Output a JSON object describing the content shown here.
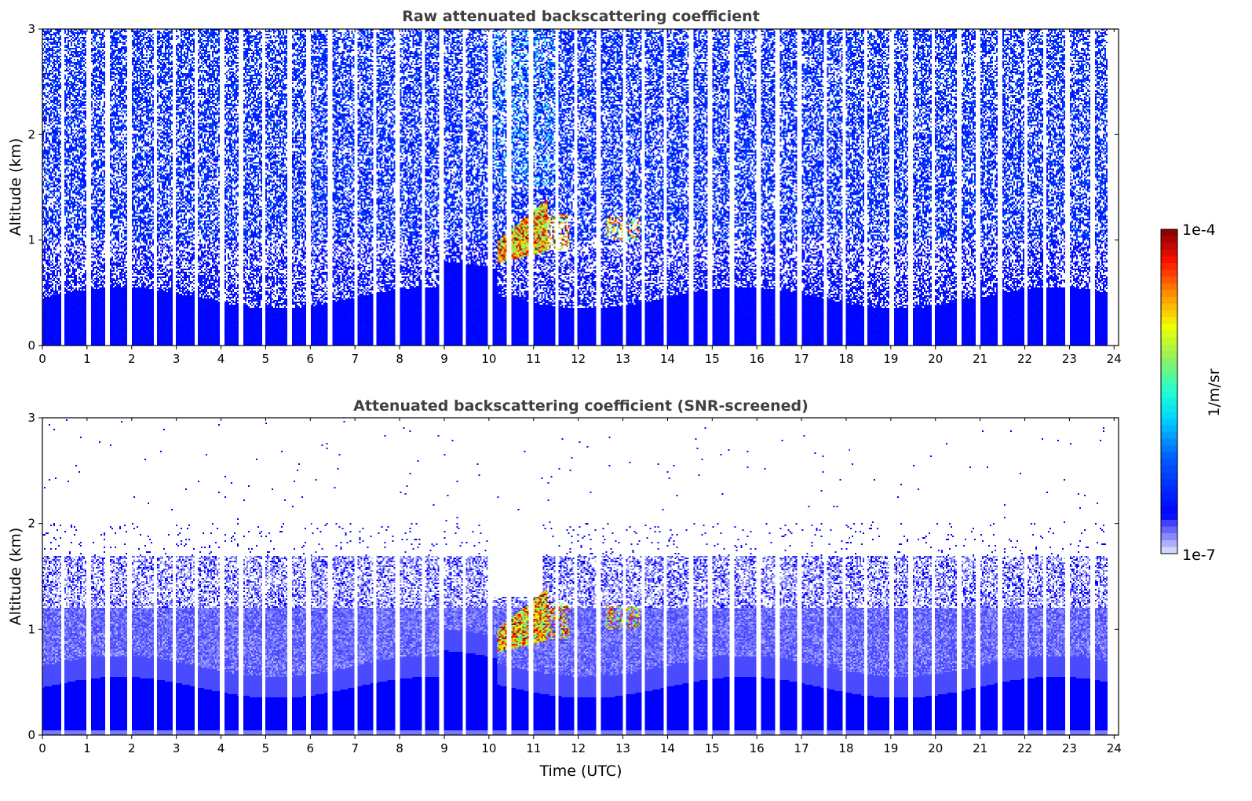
{
  "chart_data": [
    {
      "type": "heatmap",
      "title": "Raw attenuated backscattering coefficient",
      "xlabel": "",
      "ylabel": "Altitude (km)",
      "xlim": [
        0,
        24.1
      ],
      "ylim": [
        0,
        3
      ],
      "xticks": [
        "0",
        "1",
        "2",
        "3",
        "4",
        "5",
        "6",
        "7",
        "8",
        "9",
        "10",
        "11",
        "12",
        "13",
        "14",
        "15",
        "16",
        "17",
        "18",
        "19",
        "20",
        "21",
        "22",
        "23",
        "24"
      ],
      "yticks": [
        "0",
        "1",
        "2",
        "3"
      ],
      "features": {
        "boundary_layer_top_km": 0.5,
        "cloud_time_h": [
          10.2,
          11.8
        ],
        "cloud_alt_km": [
          0.8,
          1.35
        ],
        "aerosol_patch_time_h": [
          12.5,
          13.4
        ],
        "aerosol_patch_alt_km": [
          1.0,
          1.25
        ]
      }
    },
    {
      "type": "heatmap",
      "title": "Attenuated backscattering coefficient (SNR-screened)",
      "xlabel": "Time (UTC)",
      "ylabel": "Altitude (km)",
      "xlim": [
        0,
        24.1
      ],
      "ylim": [
        0,
        3
      ],
      "xticks": [
        "0",
        "1",
        "2",
        "3",
        "4",
        "5",
        "6",
        "7",
        "8",
        "9",
        "10",
        "11",
        "12",
        "13",
        "14",
        "15",
        "16",
        "17",
        "18",
        "19",
        "20",
        "21",
        "22",
        "23",
        "24"
      ],
      "yticks": [
        "0",
        "1",
        "2",
        "3"
      ],
      "features": {
        "boundary_layer_top_km": 0.5,
        "screened_top_km": 1.7,
        "cloud_time_h": [
          10.2,
          11.8
        ],
        "cloud_alt_km": [
          0.8,
          1.35
        ]
      }
    }
  ],
  "colorbar": {
    "label": "1/m/sr",
    "max_label": "1e-4",
    "min_label": "1e-7",
    "scale": "log",
    "range": [
      1e-07,
      0.0001
    ]
  }
}
